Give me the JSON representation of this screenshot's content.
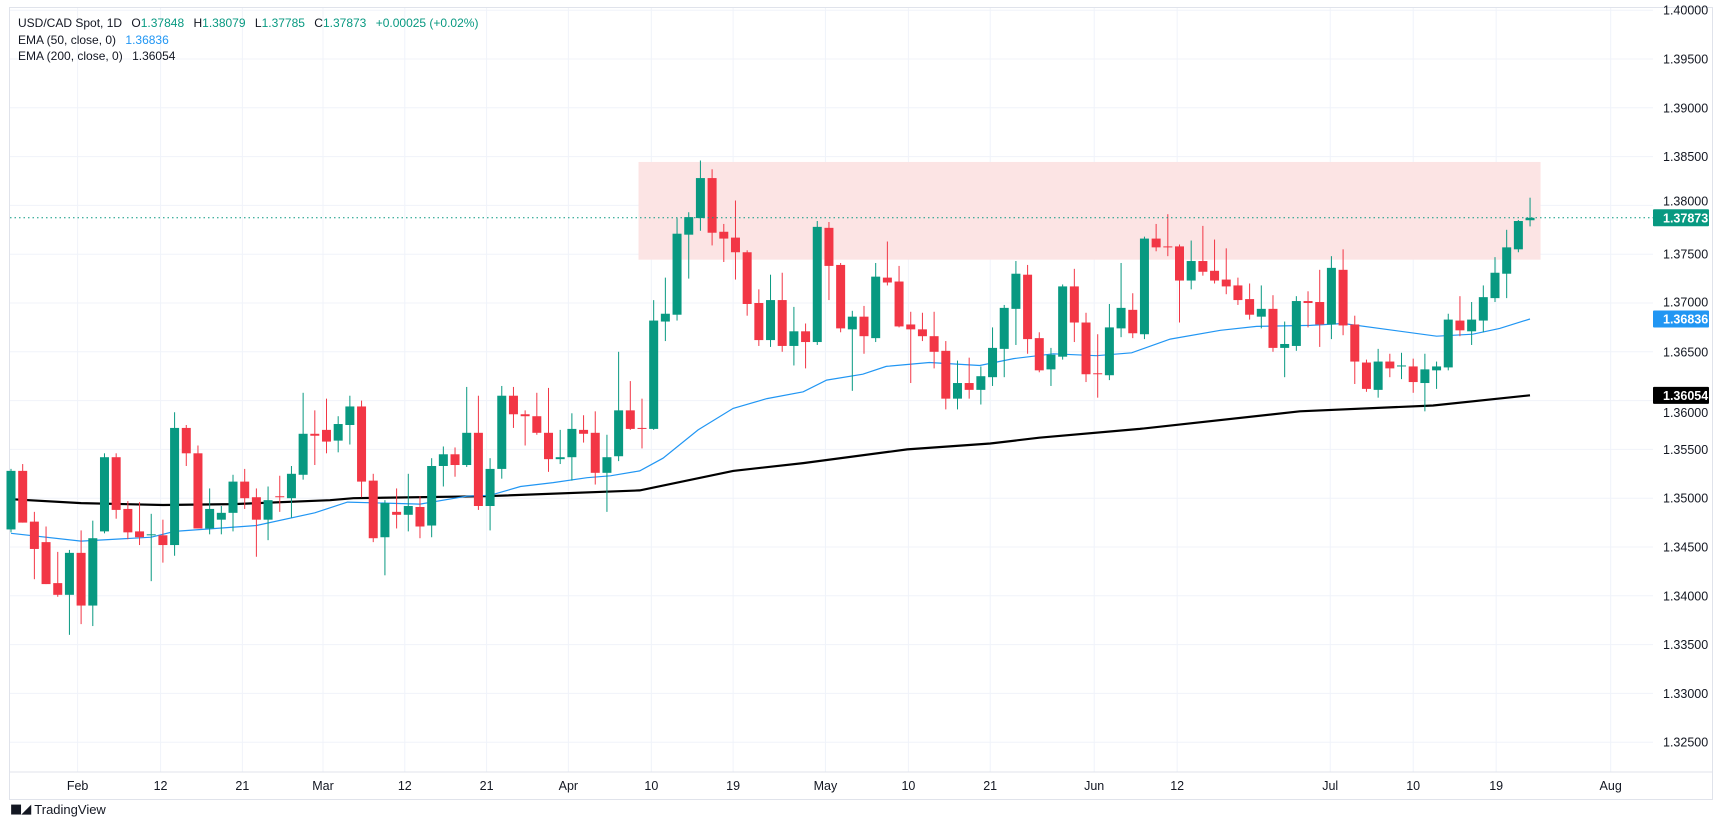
{
  "legend": {
    "symbol": "USD/CAD Spot, 1D",
    "open_label": "O",
    "open": "1.37848",
    "high_label": "H",
    "high": "1.38079",
    "low_label": "L",
    "low": "1.37785",
    "close_label": "C",
    "close": "1.37873",
    "change": "+0.00025 (+0.02%)",
    "ema50_label": "EMA (50, close, 0)",
    "ema50_value": "1.36836",
    "ema200_label": "EMA (200, close, 0)",
    "ema200_value": "1.36054"
  },
  "branding": {
    "logo_mark": "TV",
    "name": "TradingView"
  },
  "colors": {
    "up": "#089981",
    "down": "#f23645",
    "ema50": "#2196f3",
    "ema200": "#000000",
    "zone": "#fce4e4",
    "grid": "#f0f3fa"
  },
  "chart_data": {
    "type": "candlestick",
    "title": "USD/CAD Spot, 1D",
    "ylim": [
      1.3225,
      1.4
    ],
    "y_ticks": [
      "1.40000",
      "1.39500",
      "1.39000",
      "1.38500",
      "1.38000",
      "1.37500",
      "1.37000",
      "1.36500",
      "1.36000",
      "1.35500",
      "1.35000",
      "1.34500",
      "1.34000",
      "1.33500",
      "1.33000",
      "1.32500"
    ],
    "x_ticks": [
      {
        "label": "Feb",
        "bar": 6.7
      },
      {
        "label": "12",
        "bar": 13.8
      },
      {
        "label": "21",
        "bar": 20.8
      },
      {
        "label": "Mar",
        "bar": 27.7
      },
      {
        "label": "12",
        "bar": 34.7
      },
      {
        "label": "21",
        "bar": 41.7
      },
      {
        "label": "Apr",
        "bar": 48.7
      },
      {
        "label": "10",
        "bar": 55.8
      },
      {
        "label": "19",
        "bar": 62.8
      },
      {
        "label": "May",
        "bar": 70.7
      },
      {
        "label": "10",
        "bar": 77.8
      },
      {
        "label": "21",
        "bar": 84.8
      },
      {
        "label": "Jun",
        "bar": 93.7
      },
      {
        "label": "12",
        "bar": 100.8
      },
      {
        "label": "Jul",
        "bar": 113.9
      },
      {
        "label": "10",
        "bar": 121.0
      },
      {
        "label": "19",
        "bar": 128.1
      },
      {
        "label": "Aug",
        "bar": 137.9
      }
    ],
    "ohlc_fields": [
      "open",
      "high",
      "low",
      "close"
    ],
    "candles": [
      [
        1.3468,
        1.353,
        1.3465,
        1.3528
      ],
      [
        1.3528,
        1.3535,
        1.3475,
        1.3475
      ],
      [
        1.3476,
        1.3486,
        1.3417,
        1.3448
      ],
      [
        1.3455,
        1.3471,
        1.3412,
        1.3412
      ],
      [
        1.3413,
        1.3445,
        1.3399,
        1.3401
      ],
      [
        1.3401,
        1.3447,
        1.336,
        1.3444
      ],
      [
        1.3444,
        1.3467,
        1.3371,
        1.339
      ],
      [
        1.339,
        1.3477,
        1.3369,
        1.3459
      ],
      [
        1.3466,
        1.3546,
        1.3464,
        1.3542
      ],
      [
        1.3542,
        1.3546,
        1.3479,
        1.3488
      ],
      [
        1.3489,
        1.3497,
        1.3458,
        1.3465
      ],
      [
        1.3466,
        1.3496,
        1.3452,
        1.346
      ],
      [
        1.3462,
        1.3484,
        1.3415,
        1.3463
      ],
      [
        1.3462,
        1.3478,
        1.3434,
        1.3452
      ],
      [
        1.3452,
        1.3588,
        1.3441,
        1.3572
      ],
      [
        1.3572,
        1.3575,
        1.3533,
        1.3546
      ],
      [
        1.3546,
        1.3554,
        1.3469,
        1.3469
      ],
      [
        1.3469,
        1.351,
        1.3463,
        1.3489
      ],
      [
        1.3478,
        1.3492,
        1.3463,
        1.3485
      ],
      [
        1.3485,
        1.3524,
        1.3466,
        1.3517
      ],
      [
        1.3517,
        1.353,
        1.3489,
        1.35
      ],
      [
        1.3501,
        1.351,
        1.344,
        1.3478
      ],
      [
        1.3478,
        1.3512,
        1.3457,
        1.3498
      ],
      [
        1.3502,
        1.3523,
        1.3486,
        1.3501
      ],
      [
        1.35,
        1.3533,
        1.348,
        1.3525
      ],
      [
        1.3524,
        1.3608,
        1.3519,
        1.3566
      ],
      [
        1.3566,
        1.359,
        1.3534,
        1.3564
      ],
      [
        1.357,
        1.3602,
        1.3546,
        1.3558
      ],
      [
        1.3559,
        1.3584,
        1.3547,
        1.3576
      ],
      [
        1.3575,
        1.3605,
        1.3555,
        1.3594
      ],
      [
        1.3594,
        1.36,
        1.3501,
        1.3517
      ],
      [
        1.3518,
        1.3525,
        1.3455,
        1.3459
      ],
      [
        1.346,
        1.3498,
        1.3421,
        1.3495
      ],
      [
        1.3486,
        1.351,
        1.3469,
        1.3483
      ],
      [
        1.3483,
        1.3525,
        1.3466,
        1.3492
      ],
      [
        1.3491,
        1.3502,
        1.3459,
        1.3471
      ],
      [
        1.3472,
        1.3541,
        1.346,
        1.3533
      ],
      [
        1.3533,
        1.3553,
        1.3512,
        1.3545
      ],
      [
        1.3545,
        1.3552,
        1.3522,
        1.3534
      ],
      [
        1.3534,
        1.3614,
        1.3532,
        1.3567
      ],
      [
        1.3567,
        1.3605,
        1.3488,
        1.3492
      ],
      [
        1.3492,
        1.3541,
        1.3467,
        1.353
      ],
      [
        1.353,
        1.3615,
        1.352,
        1.3605
      ],
      [
        1.3605,
        1.3614,
        1.3572,
        1.3586
      ],
      [
        1.3586,
        1.359,
        1.3554,
        1.3584
      ],
      [
        1.3584,
        1.3608,
        1.3565,
        1.3567
      ],
      [
        1.3567,
        1.3613,
        1.3527,
        1.354
      ],
      [
        1.354,
        1.357,
        1.3535,
        1.3542
      ],
      [
        1.3542,
        1.3587,
        1.3518,
        1.3571
      ],
      [
        1.357,
        1.3585,
        1.3557,
        1.3566
      ],
      [
        1.3567,
        1.3589,
        1.3514,
        1.3526
      ],
      [
        1.3526,
        1.3565,
        1.3486,
        1.3542
      ],
      [
        1.3543,
        1.365,
        1.3538,
        1.359
      ],
      [
        1.359,
        1.362,
        1.357,
        1.3571
      ],
      [
        1.3572,
        1.3602,
        1.3551,
        1.3571
      ],
      [
        1.3571,
        1.3703,
        1.357,
        1.3682
      ],
      [
        1.3681,
        1.3726,
        1.3661,
        1.3689
      ],
      [
        1.3688,
        1.3787,
        1.3682,
        1.3771
      ],
      [
        1.377,
        1.3793,
        1.3725,
        1.3788
      ],
      [
        1.3787,
        1.3846,
        1.3774,
        1.3828
      ],
      [
        1.3828,
        1.3837,
        1.3759,
        1.3772
      ],
      [
        1.3773,
        1.3781,
        1.3742,
        1.3766
      ],
      [
        1.3767,
        1.3805,
        1.3724,
        1.3752
      ],
      [
        1.3752,
        1.3754,
        1.3687,
        1.3699
      ],
      [
        1.37,
        1.3714,
        1.3656,
        1.3662
      ],
      [
        1.3662,
        1.3729,
        1.3655,
        1.3703
      ],
      [
        1.3703,
        1.3731,
        1.365,
        1.3656
      ],
      [
        1.3656,
        1.3696,
        1.3636,
        1.3671
      ],
      [
        1.3671,
        1.3679,
        1.3633,
        1.366
      ],
      [
        1.366,
        1.3784,
        1.3657,
        1.3778
      ],
      [
        1.3777,
        1.3783,
        1.3703,
        1.3738
      ],
      [
        1.3739,
        1.3741,
        1.367,
        1.3674
      ],
      [
        1.3673,
        1.3692,
        1.361,
        1.3686
      ],
      [
        1.3686,
        1.3697,
        1.3648,
        1.3666
      ],
      [
        1.3664,
        1.3741,
        1.366,
        1.3727
      ],
      [
        1.3726,
        1.3763,
        1.3718,
        1.3721
      ],
      [
        1.3722,
        1.3738,
        1.3675,
        1.3676
      ],
      [
        1.3678,
        1.3691,
        1.3618,
        1.3673
      ],
      [
        1.3673,
        1.369,
        1.3661,
        1.3666
      ],
      [
        1.3666,
        1.3691,
        1.3633,
        1.365
      ],
      [
        1.3651,
        1.3661,
        1.3591,
        1.3602
      ],
      [
        1.3602,
        1.3641,
        1.3591,
        1.3618
      ],
      [
        1.3618,
        1.3644,
        1.3602,
        1.3611
      ],
      [
        1.3611,
        1.3635,
        1.3596,
        1.3625
      ],
      [
        1.3624,
        1.3675,
        1.3615,
        1.3654
      ],
      [
        1.3653,
        1.3698,
        1.3624,
        1.3695
      ],
      [
        1.3694,
        1.3743,
        1.3657,
        1.373
      ],
      [
        1.3729,
        1.3739,
        1.3648,
        1.3663
      ],
      [
        1.3664,
        1.367,
        1.3629,
        1.3631
      ],
      [
        1.3632,
        1.3654,
        1.3615,
        1.3647
      ],
      [
        1.3645,
        1.3719,
        1.3642,
        1.3717
      ],
      [
        1.3717,
        1.3735,
        1.366,
        1.368
      ],
      [
        1.368,
        1.369,
        1.3619,
        1.3627
      ],
      [
        1.3628,
        1.3668,
        1.3603,
        1.3627
      ],
      [
        1.3626,
        1.3699,
        1.3621,
        1.3675
      ],
      [
        1.3674,
        1.3741,
        1.3665,
        1.3695
      ],
      [
        1.3693,
        1.371,
        1.3664,
        1.3669
      ],
      [
        1.3668,
        1.3768,
        1.3663,
        1.3766
      ],
      [
        1.3766,
        1.3781,
        1.3753,
        1.3757
      ],
      [
        1.3758,
        1.3791,
        1.3748,
        1.3757
      ],
      [
        1.3758,
        1.376,
        1.368,
        1.3723
      ],
      [
        1.3723,
        1.3764,
        1.3714,
        1.3743
      ],
      [
        1.3743,
        1.3779,
        1.3728,
        1.3732
      ],
      [
        1.3733,
        1.3765,
        1.372,
        1.3723
      ],
      [
        1.3724,
        1.3756,
        1.3709,
        1.3717
      ],
      [
        1.3718,
        1.3726,
        1.3698,
        1.3703
      ],
      [
        1.3704,
        1.372,
        1.3683,
        1.3688
      ],
      [
        1.3686,
        1.3718,
        1.3674,
        1.3694
      ],
      [
        1.3694,
        1.3708,
        1.365,
        1.3654
      ],
      [
        1.3654,
        1.3681,
        1.3624,
        1.3658
      ],
      [
        1.3656,
        1.3707,
        1.3651,
        1.3702
      ],
      [
        1.3702,
        1.3712,
        1.3675,
        1.37
      ],
      [
        1.3701,
        1.3734,
        1.3655,
        1.3678
      ],
      [
        1.3678,
        1.3748,
        1.3663,
        1.3736
      ],
      [
        1.3734,
        1.3755,
        1.3667,
        1.3677
      ],
      [
        1.3678,
        1.3687,
        1.3617,
        1.364
      ],
      [
        1.3639,
        1.3642,
        1.3609,
        1.3612
      ],
      [
        1.3611,
        1.3653,
        1.3603,
        1.364
      ],
      [
        1.364,
        1.3648,
        1.3624,
        1.3633
      ],
      [
        1.3635,
        1.3649,
        1.3622,
        1.3636
      ],
      [
        1.3635,
        1.3643,
        1.3608,
        1.3619
      ],
      [
        1.3618,
        1.3648,
        1.3589,
        1.3632
      ],
      [
        1.3631,
        1.364,
        1.3612,
        1.3635
      ],
      [
        1.3634,
        1.3689,
        1.3631,
        1.3683
      ],
      [
        1.3682,
        1.3707,
        1.3666,
        1.3672
      ],
      [
        1.3671,
        1.3701,
        1.3657,
        1.3683
      ],
      [
        1.3682,
        1.3718,
        1.367,
        1.3706
      ],
      [
        1.3705,
        1.3747,
        1.3701,
        1.3731
      ],
      [
        1.373,
        1.3775,
        1.3705,
        1.3757
      ],
      [
        1.3755,
        1.3785,
        1.3752,
        1.3784
      ],
      [
        1.37848,
        1.38079,
        1.37785,
        1.37873
      ]
    ],
    "ema50": [
      [
        1,
        1.3464
      ],
      [
        7,
        1.3456
      ],
      [
        13,
        1.346
      ],
      [
        15,
        1.3466
      ],
      [
        22,
        1.3472
      ],
      [
        27,
        1.3485
      ],
      [
        29.8,
        1.3496
      ],
      [
        36,
        1.3494
      ],
      [
        40,
        1.3502
      ],
      [
        42,
        1.3503
      ],
      [
        44.6,
        1.3512
      ],
      [
        47.4,
        1.3516
      ],
      [
        50.3,
        1.3521
      ],
      [
        52.3,
        1.3523
      ],
      [
        54.8,
        1.3528
      ],
      [
        56.8,
        1.3541
      ],
      [
        59.8,
        1.357
      ],
      [
        62.8,
        1.3592
      ],
      [
        65.7,
        1.3602
      ],
      [
        68.8,
        1.3609
      ],
      [
        70.8,
        1.3621
      ],
      [
        73.9,
        1.3627
      ],
      [
        75.9,
        1.3635
      ],
      [
        79.6,
        1.3639
      ],
      [
        83.9,
        1.3636
      ],
      [
        86.8,
        1.3643
      ],
      [
        90.2,
        1.3648
      ],
      [
        93.9,
        1.3646
      ],
      [
        96.9,
        1.3649
      ],
      [
        100.2,
        1.3663
      ],
      [
        104.5,
        1.3672
      ],
      [
        107.6,
        1.3676
      ],
      [
        112.2,
        1.3677
      ],
      [
        115,
        1.3679
      ],
      [
        119.3,
        1.3672
      ],
      [
        123,
        1.3666
      ],
      [
        126.1,
        1.3668
      ],
      [
        128.4,
        1.3674
      ],
      [
        131,
        1.36836
      ]
    ],
    "ema200": [
      [
        1,
        1.3499
      ],
      [
        7,
        1.3495
      ],
      [
        14,
        1.3493
      ],
      [
        20,
        1.3494
      ],
      [
        28.3,
        1.3498
      ],
      [
        30.3,
        1.35
      ],
      [
        41.7,
        1.3502
      ],
      [
        54.8,
        1.3508
      ],
      [
        62.8,
        1.3528
      ],
      [
        68.8,
        1.3536
      ],
      [
        77.7,
        1.355
      ],
      [
        84.8,
        1.3556
      ],
      [
        89,
        1.3562
      ],
      [
        97.6,
        1.3571
      ],
      [
        111.3,
        1.3589
      ],
      [
        122.7,
        1.3595
      ],
      [
        131,
        1.36054
      ]
    ],
    "zone": {
      "top": 1.38445,
      "bottom": 1.37444,
      "start_bar": 54.7,
      "end_bar": 131.9
    },
    "last_price": {
      "value": 1.37873,
      "label": "1.37873"
    },
    "ema50_last": {
      "value": 1.36836,
      "label": "1.36836"
    },
    "ema200_last": {
      "value": 1.36054,
      "label": "1.36054"
    }
  }
}
